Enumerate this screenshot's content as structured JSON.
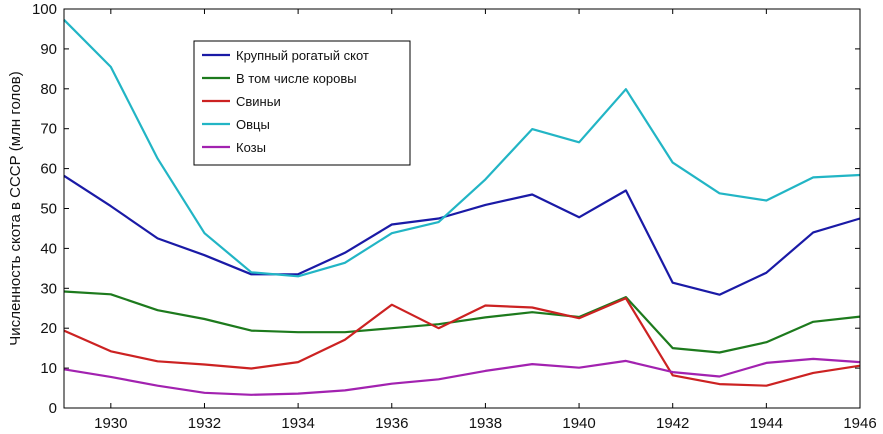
{
  "chart_data": {
    "type": "line",
    "title": "",
    "xlabel": "",
    "ylabel": "Численность скота в СССР (млн голов)",
    "xlim": [
      1929,
      1946
    ],
    "ylim": [
      0,
      100
    ],
    "xticks": [
      1930,
      1932,
      1934,
      1936,
      1938,
      1940,
      1942,
      1944,
      1946
    ],
    "yticks": [
      0,
      10,
      20,
      30,
      40,
      50,
      60,
      70,
      80,
      90,
      100
    ],
    "grid": false,
    "legend_position": "top-left",
    "x": [
      1929,
      1930,
      1931,
      1932,
      1933,
      1934,
      1935,
      1936,
      1937,
      1938,
      1939,
      1940,
      1941,
      1942,
      1943,
      1944,
      1945,
      1946
    ],
    "series": [
      {
        "name": "Крупный рогатый скот",
        "color": "#1a1aa6",
        "values": [
          58.2,
          50.6,
          42.5,
          38.3,
          33.5,
          33.5,
          38.9,
          46.0,
          47.5,
          50.9,
          53.5,
          47.8,
          54.5,
          31.4,
          28.4,
          33.9,
          44.0,
          47.5
        ]
      },
      {
        "name": "В том числе коровы",
        "color": "#1d7a1d",
        "values": [
          29.2,
          28.5,
          24.5,
          22.3,
          19.4,
          19.0,
          19.0,
          20.0,
          21.0,
          22.7,
          24.0,
          22.8,
          27.8,
          15.0,
          13.9,
          16.5,
          21.6,
          22.9
        ]
      },
      {
        "name": "Свиньи",
        "color": "#cc2222",
        "values": [
          19.4,
          14.2,
          11.7,
          10.9,
          9.9,
          11.5,
          17.1,
          25.9,
          20.0,
          25.7,
          25.2,
          22.5,
          27.5,
          8.2,
          6.0,
          5.6,
          8.8,
          10.6
        ]
      },
      {
        "name": "Овцы",
        "color": "#22b5c5",
        "values": [
          97.3,
          85.5,
          62.5,
          43.8,
          34.0,
          33.0,
          36.4,
          43.8,
          46.6,
          57.3,
          69.9,
          66.6,
          79.9,
          61.5,
          53.8,
          52.0,
          57.8,
          58.4
        ]
      },
      {
        "name": "Козы",
        "color": "#a222b0",
        "values": [
          9.7,
          7.8,
          5.6,
          3.8,
          3.3,
          3.6,
          4.4,
          6.1,
          7.2,
          9.3,
          11.0,
          10.1,
          11.8,
          9.0,
          7.9,
          11.3,
          12.3,
          11.5
        ]
      }
    ]
  }
}
